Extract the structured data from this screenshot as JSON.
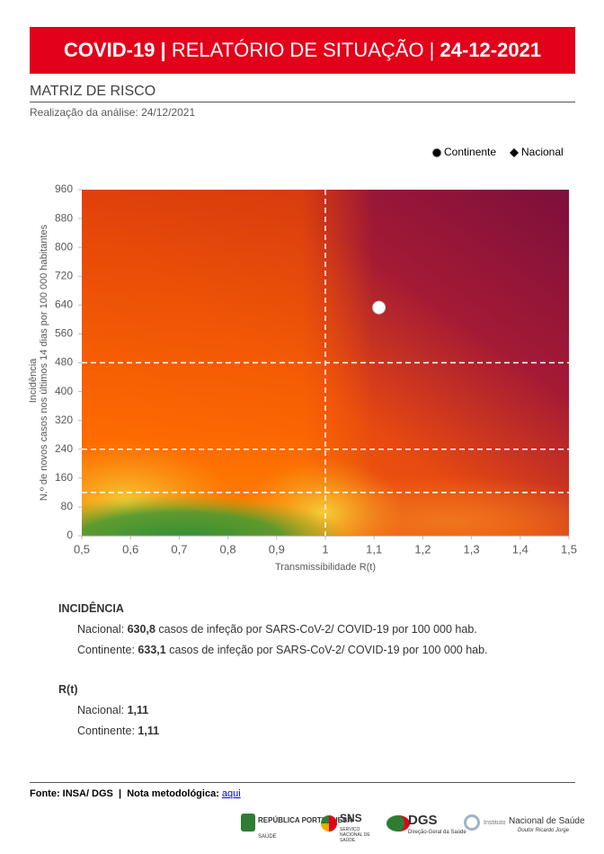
{
  "header": {
    "title_a": "COVID-19 |",
    "title_b": "RELATÓRIO DE SITUAÇÃO |",
    "title_c": "24-12-2021"
  },
  "section_title": "MATRIZ DE RISCO",
  "analysis_date": "Realização da análise: 24/12/2021",
  "chart_data": {
    "type": "scatter",
    "series": [
      {
        "name": "Nacional",
        "color": "#ffffff",
        "marker": "diamond",
        "x": [
          1.11
        ],
        "values": [
          630.8
        ]
      },
      {
        "name": "Continente",
        "color": "#ffffff",
        "marker": "circle",
        "x": [
          1.11
        ],
        "values": [
          633.1
        ]
      }
    ],
    "xlabel": "Transmissibilidade R(t)",
    "ylabel": [
      "Incidência",
      "N.º de novos casos nos últimos 14 dias por 100 000 habitantes"
    ],
    "xlim": [
      0.5,
      1.5
    ],
    "xticks": [
      {
        "value": 0.5,
        "label": "0,5"
      },
      {
        "value": 0.6,
        "label": "0,6"
      },
      {
        "value": 0.7,
        "label": "0,7"
      },
      {
        "value": 0.8,
        "label": "0,8"
      },
      {
        "value": 0.9,
        "label": "0,9"
      },
      1,
      {
        "value": 1.1,
        "label": "1,1"
      },
      {
        "value": 1.2,
        "label": "1,2"
      },
      {
        "value": 1.3,
        "label": "1,3"
      },
      {
        "value": 1.4,
        "label": "1,4"
      },
      {
        "value": 1.5,
        "label": "1,5"
      }
    ],
    "ylim": [
      0,
      960
    ],
    "yticks": [
      0,
      80,
      160,
      240,
      320,
      400,
      480,
      560,
      640,
      720,
      800,
      880,
      960
    ],
    "reference_lines": {
      "x": [
        1
      ],
      "y": [
        120,
        240,
        480
      ]
    },
    "legend": "top-right"
  },
  "incidence": {
    "title": "INCIDÊNCIA",
    "rows": [
      {
        "label": "Nacional:",
        "value": "630,8",
        "text": "casos de infeção por SARS-CoV-2/ COVID-19 por 100 000 hab."
      },
      {
        "label": "Continente:",
        "value": "633,1",
        "text": "casos de infeção por SARS-CoV-2/ COVID-19 por 100 000 hab."
      }
    ]
  },
  "rt": {
    "title": "R(t)",
    "rows": [
      {
        "label": "Nacional:",
        "value": "1,11"
      },
      {
        "label": "Continente:",
        "value": "1,11"
      }
    ]
  },
  "footer": {
    "source": "Fonte: INSA/ DGS  |  Nota metodológica:",
    "link": "aqui"
  },
  "logos": {
    "republica": "REPÚBLICA PORTUGUESA",
    "saude": "SAÚDE",
    "sns": "SNS",
    "sns_sub": "SERVIÇO NACIONAL DE SAÚDE",
    "dgs": "DGS",
    "dgs_sub": "Direção-Geral da Saúde",
    "insa_a": "Instituto",
    "insa_b": "Nacional de Saúde",
    "insa_c": "Doutor Ricardo Jorge"
  }
}
